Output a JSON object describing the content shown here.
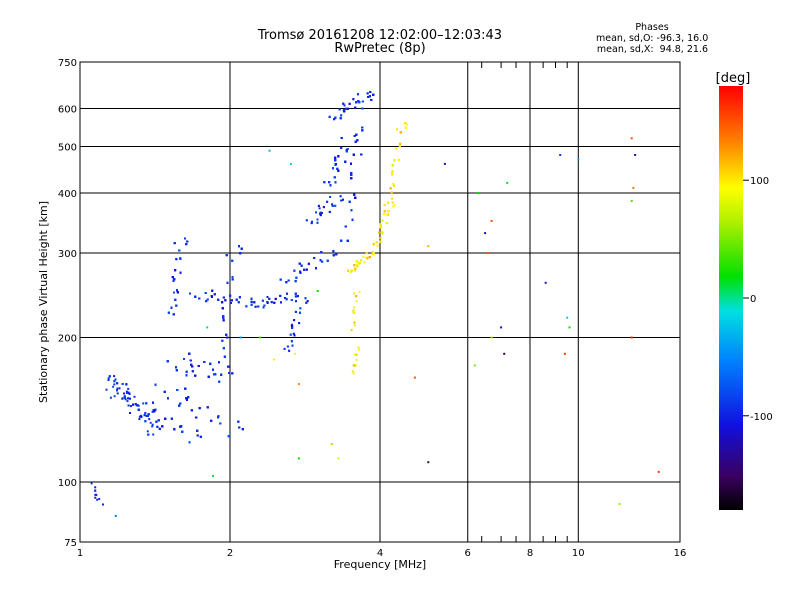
{
  "header": {
    "title_line1": "Tromsø 20161208 12:02:00–12:03:43",
    "title_line2": "RwPretec (8p)"
  },
  "phases": {
    "title": "Phases",
    "o_line": "mean, sd,O: -96.3, 16.0",
    "x_line": "mean, sd,X:  94.8, 21.6"
  },
  "chart_data": {
    "type": "scatter",
    "title": "Tromsø 20161208 12:02:00–12:03:43",
    "subtitle": "RwPretec (8p)",
    "xlabel": "Frequency [MHz]",
    "ylabel": "Stationary phase Virtual Height [km]",
    "xscale": "log",
    "yscale": "log",
    "xlim": [
      1,
      16
    ],
    "ylim": [
      75,
      750
    ],
    "xticks": [
      1,
      2,
      4,
      6,
      8,
      10,
      16
    ],
    "xtick_labels": [
      "1",
      "2",
      "4",
      "6",
      "8",
      "10",
      "16"
    ],
    "xminor": [
      6.4,
      7,
      7.5,
      8.5,
      9,
      9.5
    ],
    "yticks": [
      75,
      100,
      200,
      300,
      400,
      500,
      600,
      750
    ],
    "ytick_labels": [
      "75",
      "100",
      "200",
      "300",
      "400",
      "500",
      "600",
      "750"
    ],
    "grid": true,
    "colorbar": {
      "label": "[deg]",
      "range": [
        -180,
        180
      ],
      "ticks": [
        100,
        0,
        -100
      ],
      "tick_labels": [
        "100",
        "0",
        "-100"
      ]
    },
    "series": [
      {
        "mode": "O",
        "phase_mean": -96.3,
        "phase_sd": 16.0,
        "traces": [
          {
            "from": [
              1.12,
              168
            ],
            "to": [
              1.4,
              130
            ],
            "count": 120,
            "spread": 0.09
          },
          {
            "from": [
              1.2,
              150
            ],
            "to": [
              1.7,
              125
            ],
            "count": 150,
            "spread": 0.08
          },
          {
            "from": [
              1.35,
              160
            ],
            "to": [
              2.05,
              130
            ],
            "count": 160,
            "spread": 0.1
          },
          {
            "from": [
              1.5,
              210
            ],
            "to": [
              1.6,
              320
            ],
            "count": 110,
            "spread": 0.07
          },
          {
            "from": [
              1.45,
              175
            ],
            "to": [
              1.95,
              170
            ],
            "count": 140,
            "spread": 0.1
          },
          {
            "from": [
              1.85,
              150
            ],
            "to": [
              2.05,
              310
            ],
            "count": 110,
            "spread": 0.08
          },
          {
            "from": [
              1.6,
              245
            ],
            "to": [
              2.2,
              238
            ],
            "count": 90,
            "spread": 0.05
          },
          {
            "from": [
              2.15,
              230
            ],
            "to": [
              2.7,
              245
            ],
            "count": 70,
            "spread": 0.04
          },
          {
            "from": [
              2.45,
              255
            ],
            "to": [
              3.2,
              300
            ],
            "count": 90,
            "spread": 0.06
          },
          {
            "from": [
              2.55,
              180
            ],
            "to": [
              2.8,
              240
            ],
            "count": 50,
            "spread": 0.06
          },
          {
            "from": [
              2.8,
              340
            ],
            "to": [
              3.3,
              390
            ],
            "count": 40,
            "spread": 0.06
          },
          {
            "from": [
              3.05,
              400
            ],
            "to": [
              3.5,
              520
            ],
            "count": 140,
            "spread": 0.08
          },
          {
            "from": [
              3.3,
              280
            ],
            "to": [
              3.75,
              650
            ],
            "count": 240,
            "spread": 0.09
          },
          {
            "from": [
              3.1,
              560
            ],
            "to": [
              3.75,
              640
            ],
            "count": 80,
            "spread": 0.05
          },
          {
            "from": [
              1.05,
              100
            ],
            "to": [
              1.1,
              90
            ],
            "count": 10,
            "spread": 0.03
          }
        ]
      },
      {
        "mode": "X",
        "phase_mean": 94.8,
        "phase_sd": 21.6,
        "traces": [
          {
            "from": [
              3.4,
              270
            ],
            "to": [
              3.85,
              300
            ],
            "count": 60,
            "spread": 0.03
          },
          {
            "from": [
              3.85,
              300
            ],
            "to": [
              4.2,
              380
            ],
            "count": 80,
            "spread": 0.05
          },
          {
            "from": [
              4.05,
              340
            ],
            "to": [
              4.45,
              560
            ],
            "count": 90,
            "spread": 0.05
          },
          {
            "from": [
              3.5,
              200
            ],
            "to": [
              3.6,
              250
            ],
            "count": 12,
            "spread": 0.03
          },
          {
            "from": [
              3.5,
              165
            ],
            "to": [
              3.6,
              190
            ],
            "count": 10,
            "spread": 0.03
          }
        ]
      }
    ],
    "sparse_points": [
      [
        12.8,
        520,
        150
      ],
      [
        13.0,
        480,
        -120
      ],
      [
        12.9,
        410,
        140
      ],
      [
        12.8,
        385,
        40
      ],
      [
        9.2,
        480,
        -90
      ],
      [
        10.0,
        470,
        -40
      ],
      [
        8.6,
        260,
        -110
      ],
      [
        6.6,
        300,
        150
      ],
      [
        6.7,
        350,
        150
      ],
      [
        7.2,
        420,
        10
      ],
      [
        9.5,
        220,
        -20
      ],
      [
        9.6,
        210,
        20
      ],
      [
        7.0,
        210,
        -120
      ],
      [
        12.8,
        200,
        160
      ],
      [
        7.1,
        185,
        -160
      ],
      [
        9.4,
        185,
        160
      ],
      [
        6.7,
        200,
        60
      ],
      [
        5.4,
        460,
        -130
      ],
      [
        6.3,
        400,
        20
      ],
      [
        6.5,
        330,
        -120
      ],
      [
        6.2,
        175,
        50
      ],
      [
        5.0,
        310,
        120
      ],
      [
        4.7,
        165,
        150
      ],
      [
        5.0,
        110,
        -150
      ],
      [
        14.5,
        105,
        160
      ],
      [
        12.1,
        90,
        60
      ],
      [
        3.2,
        120,
        60
      ],
      [
        3.3,
        112,
        80
      ],
      [
        2.75,
        112,
        20
      ],
      [
        1.85,
        103,
        10
      ],
      [
        1.18,
        85,
        -60
      ],
      [
        2.3,
        200,
        40
      ],
      [
        2.45,
        180,
        100
      ],
      [
        2.75,
        160,
        130
      ],
      [
        2.7,
        185,
        90
      ],
      [
        2.65,
        460,
        -20
      ],
      [
        3.0,
        250,
        20
      ],
      [
        1.8,
        210,
        0
      ],
      [
        2.1,
        200,
        -40
      ],
      [
        2.4,
        490,
        -30
      ]
    ]
  }
}
